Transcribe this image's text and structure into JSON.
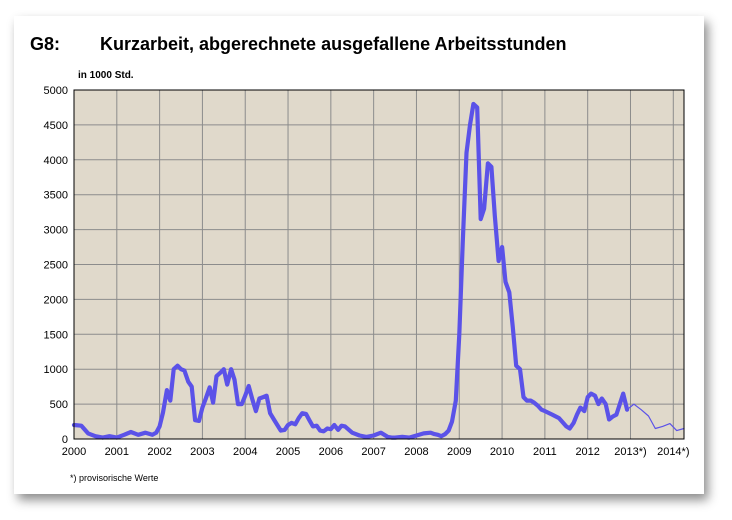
{
  "header": {
    "code": "G8:",
    "title": "Kurzarbeit, abgerechnete ausgefallene Arbeitsstunden",
    "unit": "in 1000 Std."
  },
  "footnote": "*) provisorische Werte",
  "colors": {
    "plot_bg": "#e0d9cb",
    "grid": "#8c8c8c",
    "line": "#5b52e8",
    "provisional_line": "#5b52e8"
  },
  "chart_data": {
    "type": "line",
    "title": "Kurzarbeit, abgerechnete ausgefallene Arbeitsstunden",
    "ylabel": "in 1000 Std.",
    "xlabel": "",
    "ylim": [
      0,
      5000
    ],
    "xlim": [
      2000,
      2014.25
    ],
    "yticks": [
      0,
      500,
      1000,
      1500,
      2000,
      2500,
      3000,
      3500,
      4000,
      4500,
      5000
    ],
    "xtick_labels": [
      "2000",
      "2001",
      "2002",
      "2003",
      "2004",
      "2005",
      "2006",
      "2007",
      "2008",
      "2009",
      "2010",
      "2011",
      "2012",
      "2013*)",
      "2014*)"
    ],
    "grid": true,
    "legend": "none",
    "series": [
      {
        "provisional": false,
        "x": [
          2000.0,
          2000.17,
          2000.33,
          2000.5,
          2000.67,
          2000.83,
          2001.0,
          2001.17,
          2001.33,
          2001.5,
          2001.67,
          2001.83,
          2001.92,
          2002.0,
          2002.08,
          2002.17,
          2002.25,
          2002.33,
          2002.42,
          2002.5,
          2002.58,
          2002.67,
          2002.75,
          2002.83,
          2002.92,
          2003.0,
          2003.08,
          2003.17,
          2003.25,
          2003.33,
          2003.42,
          2003.5,
          2003.58,
          2003.67,
          2003.75,
          2003.83,
          2003.92,
          2004.0,
          2004.08,
          2004.17,
          2004.25,
          2004.33,
          2004.42,
          2004.5,
          2004.58,
          2004.67,
          2004.75,
          2004.83,
          2004.92,
          2005.0,
          2005.08,
          2005.17,
          2005.25,
          2005.33,
          2005.42,
          2005.5,
          2005.58,
          2005.67,
          2005.75,
          2005.83,
          2005.92,
          2006.0,
          2006.08,
          2006.17,
          2006.25,
          2006.33,
          2006.5,
          2006.67,
          2006.83,
          2007.0,
          2007.17,
          2007.33,
          2007.42,
          2007.5,
          2007.67,
          2007.83,
          2008.0,
          2008.17,
          2008.33,
          2008.42,
          2008.5,
          2008.58,
          2008.67,
          2008.75,
          2008.83,
          2008.92,
          2009.0,
          2009.08,
          2009.17,
          2009.25,
          2009.33,
          2009.42,
          2009.5,
          2009.58,
          2009.67,
          2009.75,
          2009.83,
          2009.92,
          2010.0,
          2010.08,
          2010.17,
          2010.25,
          2010.33,
          2010.42,
          2010.5,
          2010.58,
          2010.67,
          2010.75,
          2010.83,
          2010.92,
          2011.0,
          2011.17,
          2011.33,
          2011.5,
          2011.58,
          2011.67,
          2011.75,
          2011.83,
          2011.92,
          2012.0,
          2012.08,
          2012.17,
          2012.25,
          2012.33,
          2012.42,
          2012.5,
          2012.58,
          2012.67,
          2012.75,
          2012.83,
          2012.92
        ],
        "y": [
          200,
          190,
          80,
          40,
          20,
          40,
          20,
          60,
          100,
          60,
          90,
          60,
          90,
          180,
          380,
          700,
          550,
          1000,
          1050,
          1000,
          980,
          820,
          750,
          270,
          260,
          450,
          580,
          740,
          520,
          900,
          950,
          1000,
          780,
          1000,
          850,
          500,
          500,
          620,
          760,
          560,
          400,
          580,
          600,
          620,
          370,
          280,
          200,
          120,
          130,
          200,
          230,
          210,
          300,
          370,
          360,
          270,
          180,
          190,
          120,
          110,
          150,
          140,
          200,
          130,
          190,
          180,
          90,
          50,
          30,
          50,
          90,
          30,
          20,
          20,
          30,
          20,
          50,
          80,
          90,
          70,
          60,
          40,
          70,
          120,
          250,
          550,
          1500,
          2800,
          4100,
          4500,
          4800,
          4750,
          3150,
          3300,
          3950,
          3900,
          3200,
          2550,
          2750,
          2250,
          2100,
          1600,
          1050,
          1000,
          600,
          550,
          550,
          520,
          480,
          420,
          400,
          350,
          300,
          180,
          150,
          230,
          350,
          450,
          400,
          600,
          650,
          620,
          500,
          580,
          500,
          280,
          320,
          350,
          500,
          650,
          420
        ]
      },
      {
        "provisional": true,
        "x": [
          2012.92,
          2013.08,
          2013.25,
          2013.42,
          2013.58,
          2013.75,
          2013.92,
          2014.08,
          2014.25
        ],
        "y": [
          420,
          500,
          420,
          330,
          150,
          180,
          220,
          120,
          150
        ]
      }
    ]
  }
}
